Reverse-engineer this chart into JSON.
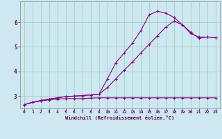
{
  "xlabel": "Windchill (Refroidissement éolien,°C)",
  "ylabel": "",
  "bg_color": "#cde8f0",
  "grid_color": "#a8cfc0",
  "line_color": "#880088",
  "xlim": [
    -0.5,
    23.5
  ],
  "ylim": [
    2.5,
    6.85
  ],
  "yticks": [
    3,
    4,
    5,
    6
  ],
  "xticks": [
    0,
    1,
    2,
    3,
    4,
    5,
    6,
    7,
    8,
    9,
    10,
    11,
    12,
    13,
    14,
    15,
    16,
    17,
    18,
    19,
    20,
    21,
    22,
    23
  ],
  "series": [
    {
      "x": [
        0,
        1,
        2,
        3,
        4,
        5,
        6,
        7,
        8,
        9,
        10,
        11,
        12,
        13,
        14,
        15,
        16,
        17,
        18,
        19,
        20,
        21,
        22,
        23
      ],
      "y": [
        2.65,
        2.75,
        2.8,
        2.85,
        2.88,
        2.9,
        2.9,
        2.9,
        2.92,
        2.93,
        2.93,
        2.93,
        2.93,
        2.93,
        2.93,
        2.93,
        2.93,
        2.93,
        2.93,
        2.93,
        2.93,
        2.93,
        2.93,
        2.93
      ]
    },
    {
      "x": [
        0,
        1,
        2,
        3,
        4,
        5,
        6,
        7,
        8,
        9,
        10,
        11,
        12,
        13,
        14,
        15,
        16,
        17,
        18,
        19,
        20,
        21,
        22,
        23
      ],
      "y": [
        2.65,
        2.75,
        2.82,
        2.88,
        2.93,
        2.98,
        3.0,
        3.02,
        3.05,
        3.08,
        3.35,
        3.7,
        4.05,
        4.38,
        4.75,
        5.1,
        5.45,
        5.8,
        6.05,
        5.9,
        5.6,
        5.35,
        5.4,
        5.38
      ]
    },
    {
      "x": [
        0,
        1,
        2,
        3,
        4,
        5,
        6,
        7,
        8,
        9,
        10,
        11,
        12,
        13,
        14,
        15,
        16,
        17,
        18,
        19,
        20,
        21,
        22,
        23
      ],
      "y": [
        2.65,
        2.75,
        2.82,
        2.88,
        2.93,
        2.98,
        3.0,
        3.02,
        3.05,
        3.08,
        3.7,
        4.35,
        4.75,
        5.15,
        5.65,
        6.3,
        6.45,
        6.38,
        6.2,
        5.9,
        5.55,
        5.4,
        5.4,
        5.38
      ]
    }
  ]
}
